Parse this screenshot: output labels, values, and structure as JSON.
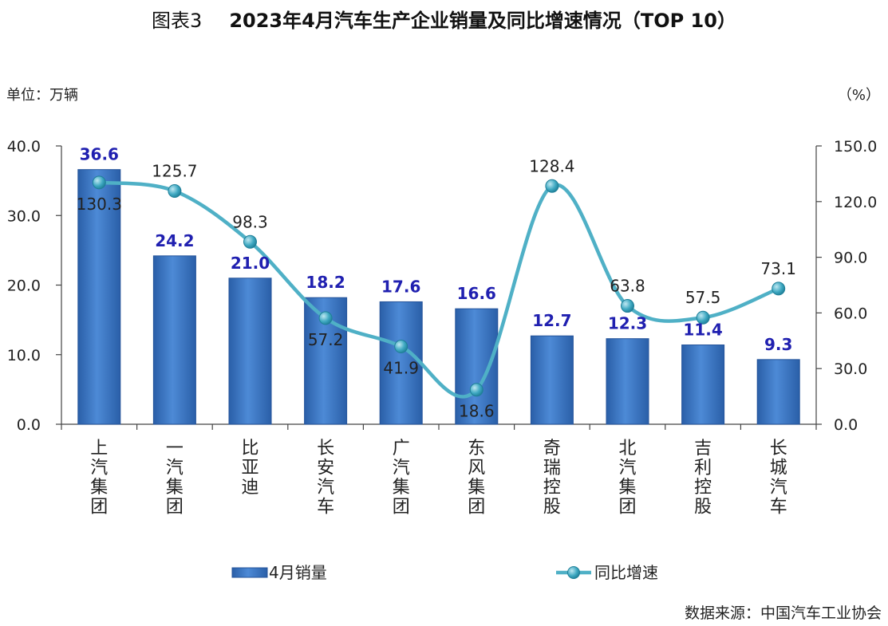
{
  "title_prefix": "图表3",
  "title": "2023年4月汽车生产企业销量及同比增速情况（TOP 10）",
  "unit_left": "单位：万辆",
  "unit_right": "（%）",
  "source": "数据来源：中国汽车工业协会",
  "chart_data": {
    "type": "bar",
    "categories": [
      "上汽集团",
      "一汽集团",
      "比亚迪",
      "长安汽车",
      "广汽集团",
      "东风集团",
      "奇瑞控股",
      "北汽集团",
      "吉利控股",
      "长城汽车"
    ],
    "series": [
      {
        "name": "4月销量",
        "type": "bar",
        "axis": "left",
        "values": [
          36.6,
          24.2,
          21.0,
          18.2,
          17.6,
          16.6,
          12.7,
          12.3,
          11.4,
          9.3
        ]
      },
      {
        "name": "同比增速",
        "type": "line",
        "axis": "right",
        "values": [
          130.3,
          125.7,
          98.3,
          57.2,
          41.9,
          18.6,
          128.4,
          63.8,
          57.5,
          73.1
        ]
      }
    ],
    "y_left": {
      "min": 0,
      "max": 40,
      "ticks": [
        "0.0",
        "10.0",
        "20.0",
        "30.0",
        "40.0"
      ]
    },
    "y_right": {
      "min": 0,
      "max": 150,
      "ticks": [
        "0.0",
        "30.0",
        "60.0",
        "90.0",
        "120.0",
        "150.0"
      ]
    },
    "legend_position": "bottom",
    "colors": {
      "bar": "#3a78c8",
      "bar_label": "#2020b0",
      "line": "#4fb0c6",
      "marker": "#2f9fb8"
    }
  }
}
